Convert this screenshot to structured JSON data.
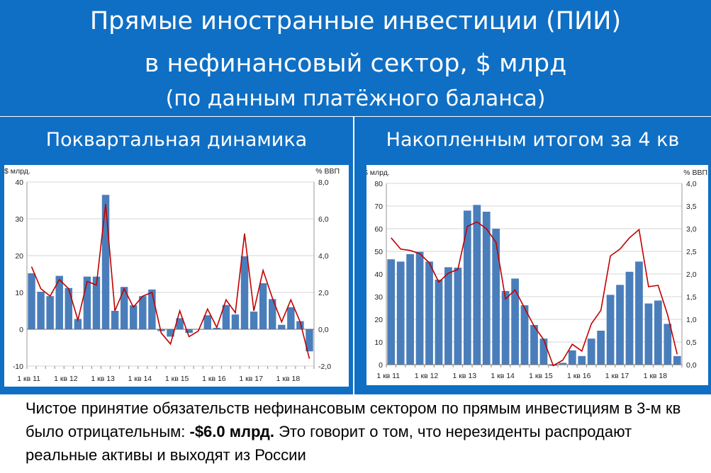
{
  "header": {
    "line1": "Прямые иностранные инвестиции (ПИИ)",
    "line2": "в нефинансовый сектор, $ млрд",
    "line3": "(по данным платёжного баланса)"
  },
  "panels": {
    "left_title": "Поквартальная динамика",
    "right_title": "Накопленным итогом за 4 кв"
  },
  "colors": {
    "header_bg": "#0f6fc4",
    "bar": "#4a7ebb",
    "line": "#c00000"
  },
  "chart_data": [
    {
      "type": "bar",
      "name": "quarterly",
      "ylabel_left": "$ млрд.",
      "ylabel_right": "% ВВП",
      "ylim": [
        -10,
        40
      ],
      "ylim_right": [
        -2.0,
        8.0
      ],
      "yticks": [
        "-10",
        "0",
        "10",
        "20",
        "30",
        "40"
      ],
      "yticks_right": [
        "-2,0",
        "0,0",
        "2,0",
        "4,0",
        "6,0",
        "8,0"
      ],
      "xtick_labels": [
        "1 кв 11",
        "1 кв 12",
        "1 кв 13",
        "1 кв 14",
        "1 кв 15",
        "1 кв 16",
        "1 кв 17",
        "1 кв 18"
      ],
      "categories": [
        "Q1-11",
        "Q2-11",
        "Q3-11",
        "Q4-11",
        "Q1-12",
        "Q2-12",
        "Q3-12",
        "Q4-12",
        "Q1-13",
        "Q2-13",
        "Q3-13",
        "Q4-13",
        "Q1-14",
        "Q2-14",
        "Q3-14",
        "Q4-14",
        "Q1-15",
        "Q2-15",
        "Q3-15",
        "Q4-15",
        "Q1-16",
        "Q2-16",
        "Q3-16",
        "Q4-16",
        "Q1-17",
        "Q2-17",
        "Q3-17",
        "Q4-17",
        "Q1-18",
        "Q2-18",
        "Q3-18"
      ],
      "bars_usd_bn": [
        15.2,
        10.2,
        9.0,
        14.5,
        11.2,
        2.8,
        14.3,
        14.3,
        36.5,
        5.0,
        11.5,
        6.5,
        9.0,
        10.8,
        -0.5,
        -2.0,
        3.0,
        -1.0,
        0.0,
        3.8,
        0.4,
        6.6,
        4.0,
        19.8,
        4.8,
        12.5,
        8.2,
        1.2,
        6.0,
        2.2,
        -6.0
      ],
      "line_pct_gdp": [
        3.4,
        2.2,
        1.8,
        2.7,
        2.2,
        0.5,
        2.6,
        2.4,
        6.8,
        1.0,
        2.2,
        1.2,
        1.8,
        2.0,
        -0.2,
        -0.8,
        1.0,
        -0.4,
        -0.1,
        1.1,
        0.1,
        1.6,
        0.9,
        5.2,
        1.0,
        3.2,
        1.7,
        0.4,
        1.6,
        0.4,
        -1.6
      ]
    },
    {
      "type": "bar",
      "name": "rolling-4q",
      "ylabel_left": "$ млрд.",
      "ylabel_right": "% ВВП",
      "ylim": [
        0,
        80
      ],
      "ylim_right": [
        0.0,
        4.0
      ],
      "yticks": [
        "0",
        "10",
        "20",
        "30",
        "40",
        "50",
        "60",
        "70",
        "80"
      ],
      "yticks_right": [
        "0,0",
        "0,5",
        "1,0",
        "1,5",
        "2,0",
        "2,5",
        "3,0",
        "3,5",
        "4,0"
      ],
      "xtick_labels": [
        "1 кв 11",
        "1 кв 12",
        "1 кв 13",
        "1 кв 14",
        "1 кв 15",
        "1 кв 16",
        "1 кв 17",
        "1 кв 18"
      ],
      "categories": [
        "Q1-11",
        "Q2-11",
        "Q3-11",
        "Q4-11",
        "Q1-12",
        "Q2-12",
        "Q3-12",
        "Q4-12",
        "Q1-13",
        "Q2-13",
        "Q3-13",
        "Q4-13",
        "Q1-14",
        "Q2-14",
        "Q3-14",
        "Q4-14",
        "Q1-15",
        "Q2-15",
        "Q3-15",
        "Q4-15",
        "Q1-16",
        "Q2-16",
        "Q3-16",
        "Q4-16",
        "Q1-17",
        "Q2-17",
        "Q3-17",
        "Q4-17",
        "Q1-18",
        "Q2-18",
        "Q3-18"
      ],
      "bars_usd_bn": [
        46.5,
        45.5,
        48.8,
        49.8,
        45.5,
        37.5,
        43.0,
        42.8,
        68.0,
        70.5,
        67.5,
        60.0,
        32.5,
        38.0,
        26.2,
        17.5,
        11.5,
        -0.5,
        0.8,
        6.3,
        3.8,
        11.5,
        15.0,
        30.8,
        35.2,
        41.0,
        45.5,
        27.0,
        28.3,
        18.0,
        3.8
      ],
      "line_pct_gdp": [
        2.8,
        2.55,
        2.52,
        2.45,
        2.25,
        1.82,
        2.02,
        2.1,
        3.05,
        3.15,
        3.0,
        2.7,
        1.45,
        1.65,
        1.25,
        0.85,
        0.55,
        -0.02,
        0.1,
        0.45,
        0.3,
        0.9,
        1.2,
        2.4,
        2.55,
        2.8,
        2.98,
        1.72,
        1.75,
        1.1,
        0.23
      ]
    }
  ],
  "bottom_text": {
    "part1": "Чистое принятие обязательств нефинансовым сектором по прямым инвестициям в 3-м кв было отрицательным: ",
    "bold": "-$6.0 млрд.",
    "part2": " Это говорит о том, что нерезиденты распродают реальные активы и выходят из России"
  }
}
